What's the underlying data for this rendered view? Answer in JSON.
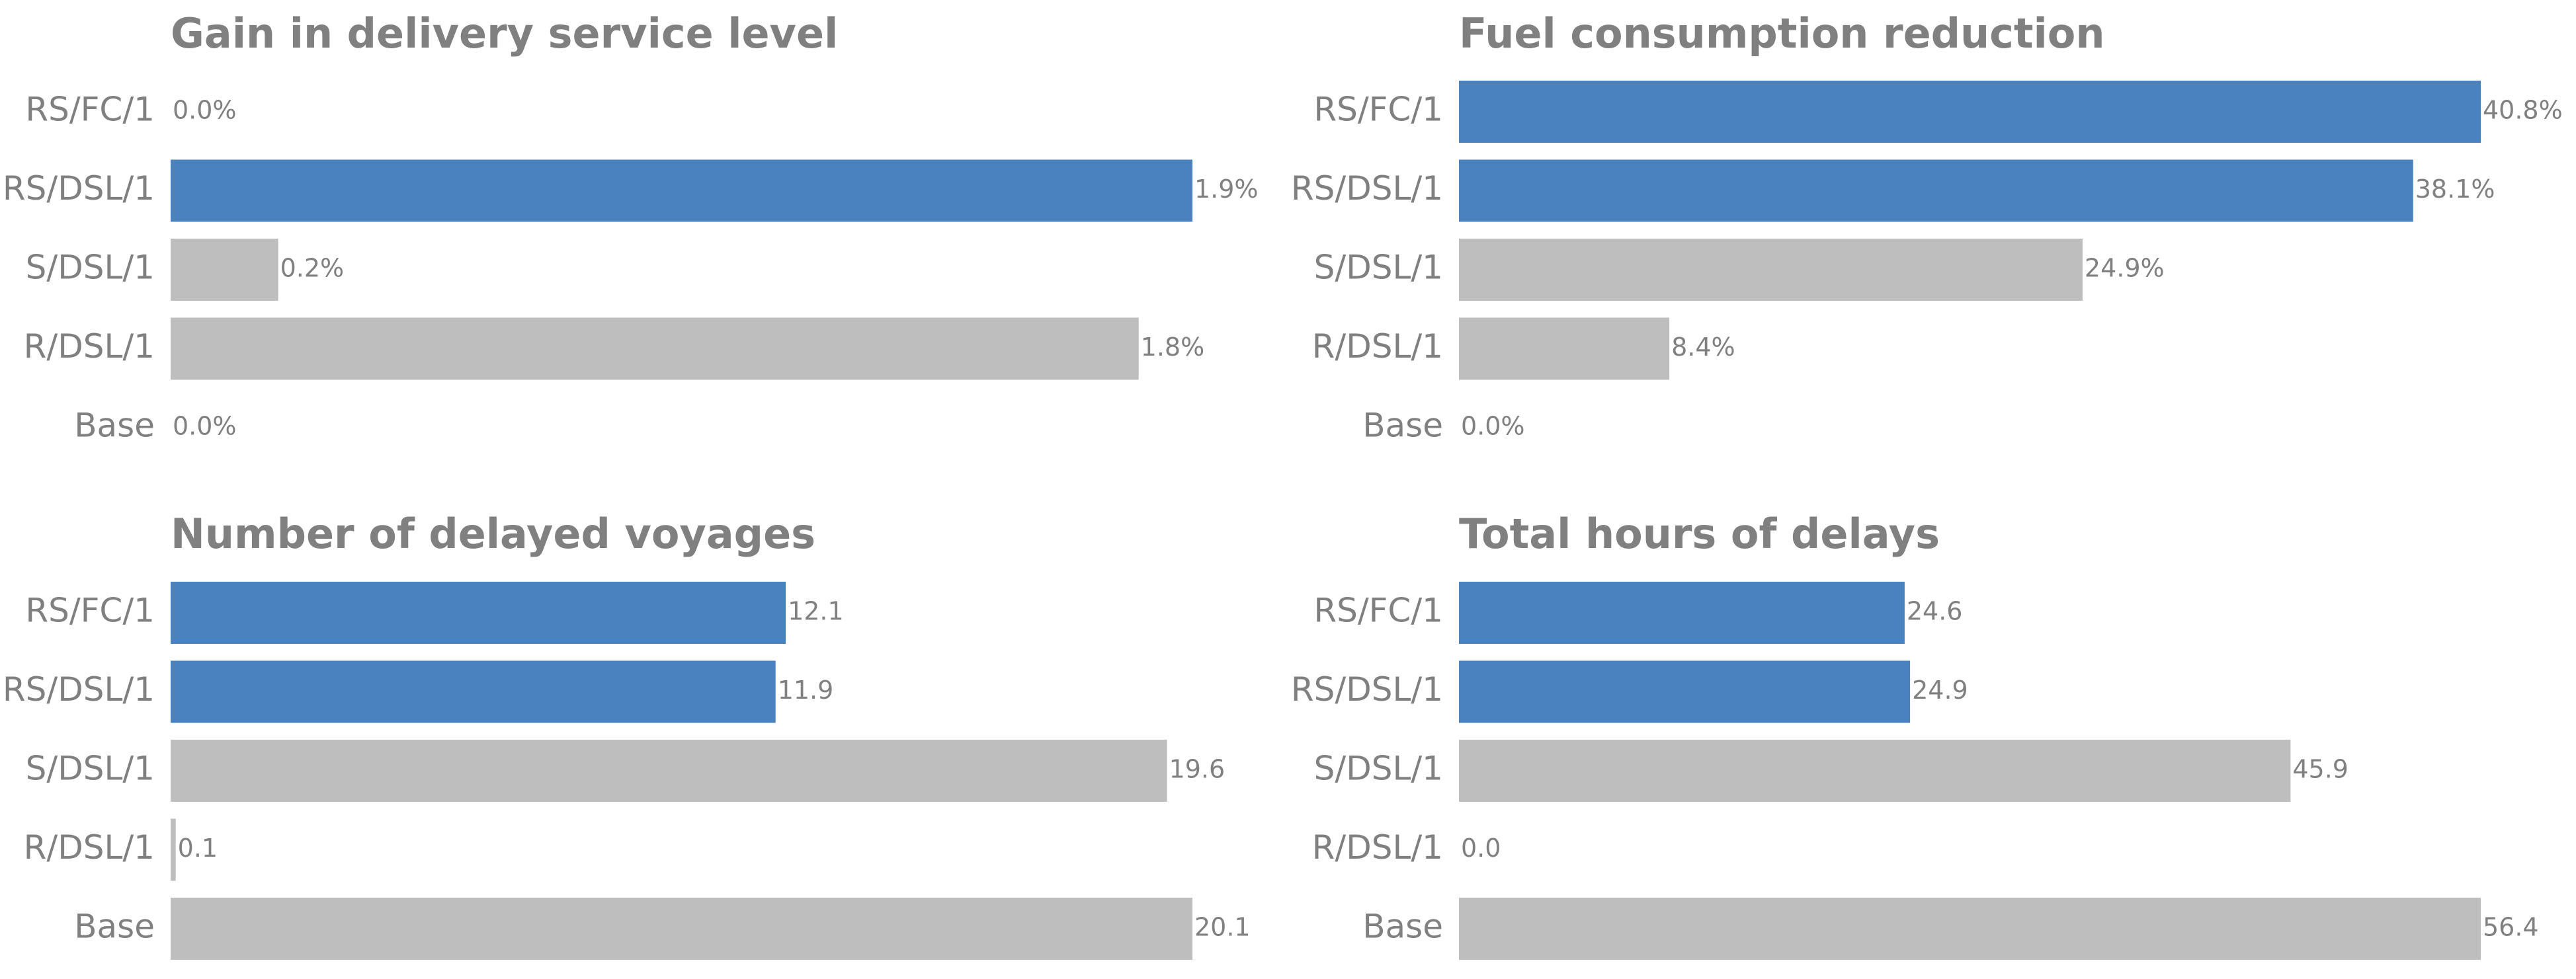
{
  "chart_data": [
    {
      "type": "bar",
      "orientation": "horizontal",
      "title": "Gain in delivery service level",
      "categories": [
        "RS/FC/1",
        "RS/DSL/1",
        "S/DSL/1",
        "R/DSL/1",
        "Base"
      ],
      "values": [
        0.0,
        1.9,
        0.2,
        1.8,
        0.0
      ],
      "value_labels": [
        "0.0%",
        "1.9%",
        "0.2%",
        "1.8%",
        "0.0%"
      ],
      "colors": [
        "#4a81bf",
        "#4a81bf",
        "#bebebe",
        "#bebebe",
        "#bebebe"
      ],
      "xlim": [
        0,
        1.9
      ]
    },
    {
      "type": "bar",
      "orientation": "horizontal",
      "title": "Fuel consumption reduction",
      "categories": [
        "RS/FC/1",
        "RS/DSL/1",
        "S/DSL/1",
        "R/DSL/1",
        "Base"
      ],
      "values": [
        40.8,
        38.1,
        24.9,
        8.4,
        0.0
      ],
      "value_labels": [
        "40.8%",
        "38.1%",
        "24.9%",
        "8.4%",
        "0.0%"
      ],
      "colors": [
        "#4a81bf",
        "#4a81bf",
        "#bebebe",
        "#bebebe",
        "#bebebe"
      ],
      "xlim": [
        0,
        40.8
      ]
    },
    {
      "type": "bar",
      "orientation": "horizontal",
      "title": "Number of delayed voyages",
      "categories": [
        "RS/FC/1",
        "RS/DSL/1",
        "S/DSL/1",
        "R/DSL/1",
        "Base"
      ],
      "values": [
        12.1,
        11.9,
        19.6,
        0.1,
        20.1
      ],
      "value_labels": [
        "12.1",
        "11.9",
        "19.6",
        "0.1",
        "20.1"
      ],
      "colors": [
        "#4a81bf",
        "#4a81bf",
        "#bebebe",
        "#bebebe",
        "#bebebe"
      ],
      "xlim": [
        0,
        20.1
      ]
    },
    {
      "type": "bar",
      "orientation": "horizontal",
      "title": "Total hours of delays",
      "categories": [
        "RS/FC/1",
        "RS/DSL/1",
        "S/DSL/1",
        "R/DSL/1",
        "Base"
      ],
      "values": [
        24.6,
        24.9,
        45.9,
        0.0,
        56.4
      ],
      "value_labels": [
        "24.6",
        "24.9",
        "45.9",
        "0.0",
        "56.4"
      ],
      "colors": [
        "#4a81bf",
        "#4a81bf",
        "#bebebe",
        "#bebebe",
        "#bebebe"
      ],
      "xlim": [
        0,
        56.4
      ]
    }
  ]
}
